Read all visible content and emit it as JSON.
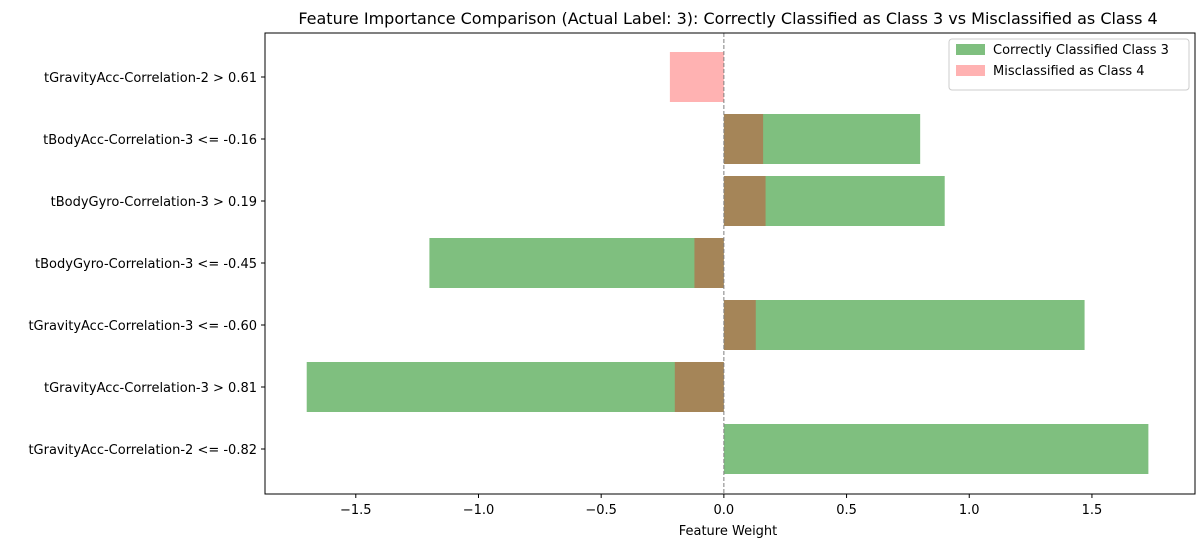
{
  "chart_data": {
    "type": "bar",
    "orientation": "horizontal",
    "title": "Feature Importance Comparison (Actual Label: 3): Correctly Classified as Class 3 vs Misclassified as Class 4",
    "xlabel": "Feature Weight",
    "ylabel": "",
    "xlim": [
      -1.87,
      1.92
    ],
    "xticks": [
      -1.5,
      -1.0,
      -0.5,
      0.0,
      0.5,
      1.0,
      1.5
    ],
    "xtick_labels": [
      "−1.5",
      "−1.0",
      "−0.5",
      "0.0",
      "0.5",
      "1.0",
      "1.5"
    ],
    "categories": [
      "tGravityAcc-Correlation-2 > 0.61",
      "tBodyAcc-Correlation-3 <= -0.16",
      "tBodyGyro-Correlation-3 > 0.19",
      "tBodyGyro-Correlation-3 <= -0.45",
      "tGravityAcc-Correlation-3 <= -0.60",
      "tGravityAcc-Correlation-3 > 0.81",
      "tGravityAcc-Correlation-2 <= -0.82"
    ],
    "series": [
      {
        "name": "Correctly Classified Class 3",
        "color": "#008000",
        "opacity": 0.5,
        "values": [
          0,
          0.8,
          0.9,
          -1.2,
          1.47,
          -1.7,
          1.73
        ]
      },
      {
        "name": "Misclassified as Class 4",
        "color": "#ff0000",
        "opacity": 0.3,
        "values": [
          -0.22,
          0.16,
          0.17,
          -0.12,
          0.13,
          -0.2,
          0
        ]
      }
    ],
    "zero_line": {
      "x": 0,
      "style": "dashed",
      "color": "#808080"
    },
    "grid": false,
    "legend_position": "top-right"
  }
}
